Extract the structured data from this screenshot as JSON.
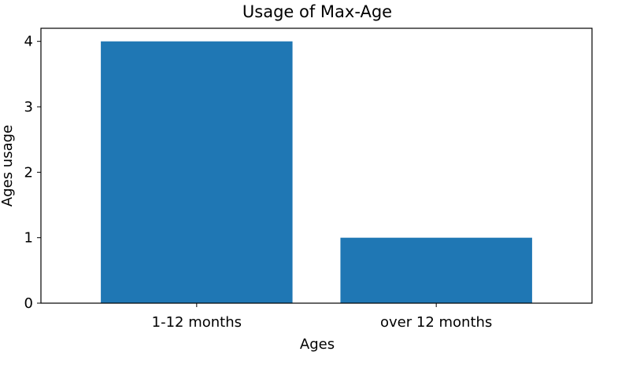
{
  "chart_data": {
    "type": "bar",
    "title": "Usage of Max-Age",
    "xlabel": "Ages",
    "ylabel": "Ages usage",
    "categories": [
      "1-12 months",
      "over 12 months"
    ],
    "values": [
      4,
      1
    ],
    "ylim": [
      0,
      4.2
    ],
    "yticks": [
      "0",
      "1",
      "2",
      "3",
      "4"
    ],
    "grid": false,
    "bar_color": "#1f77b4"
  }
}
